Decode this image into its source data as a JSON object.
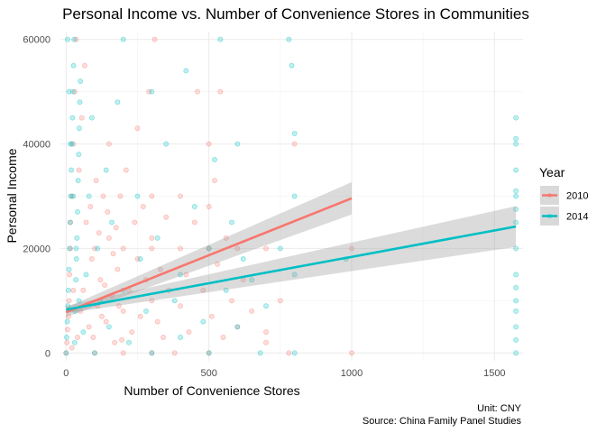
{
  "chart_data": {
    "type": "scatter",
    "title": "Personal Income vs. Number of Convenience Stores in Communities",
    "xlabel": "Number of Convenience Stores",
    "ylabel": "Personal Income",
    "xlim": [
      -20,
      1600
    ],
    "ylim": [
      -1500,
      61500
    ],
    "x_ticks": [
      0,
      500,
      1000,
      1500
    ],
    "y_ticks": [
      0,
      20000,
      40000,
      60000
    ],
    "x_tick_labels": [
      "0",
      "500",
      "1000",
      "1500"
    ],
    "y_tick_labels": [
      "0",
      "20000",
      "40000",
      "60000"
    ],
    "grid": true,
    "legend": {
      "title": "Year",
      "position": "right"
    },
    "caption": [
      "Unit: CNY",
      "Source: China Family Panel Studies"
    ],
    "series": [
      {
        "name": "2010",
        "color": "#F8766D",
        "point_alpha": 0.25,
        "trend": {
          "x": [
            0,
            1000
          ],
          "y": [
            7800,
            29600
          ],
          "ci_lower": [
            6900,
            26500
          ],
          "ci_upper": [
            8700,
            32700
          ]
        },
        "points": [
          [
            0,
            0
          ],
          [
            3,
            2000
          ],
          [
            5,
            4500
          ],
          [
            8,
            7000
          ],
          [
            10,
            10000
          ],
          [
            12,
            15000
          ],
          [
            15,
            20000
          ],
          [
            20,
            30000
          ],
          [
            25,
            40000
          ],
          [
            30,
            50000
          ],
          [
            35,
            60000
          ],
          [
            20,
            1000
          ],
          [
            40,
            3000
          ],
          [
            50,
            8000
          ],
          [
            60,
            12000
          ],
          [
            70,
            25000
          ],
          [
            80,
            5000
          ],
          [
            90,
            18000
          ],
          [
            100,
            0
          ],
          [
            100,
            20000
          ],
          [
            110,
            9000
          ],
          [
            120,
            14000
          ],
          [
            130,
            30000
          ],
          [
            140,
            6000
          ],
          [
            150,
            22000
          ],
          [
            150,
            40000
          ],
          [
            160,
            11000
          ],
          [
            170,
            2000
          ],
          [
            180,
            16000
          ],
          [
            190,
            30000
          ],
          [
            200,
            0
          ],
          [
            200,
            8000
          ],
          [
            200,
            20000
          ],
          [
            210,
            35000
          ],
          [
            220,
            12000
          ],
          [
            230,
            4000
          ],
          [
            240,
            25000
          ],
          [
            250,
            43000
          ],
          [
            250,
            18000
          ],
          [
            260,
            7000
          ],
          [
            270,
            28000
          ],
          [
            280,
            14000
          ],
          [
            290,
            50000
          ],
          [
            300,
            0
          ],
          [
            300,
            10000
          ],
          [
            300,
            20000
          ],
          [
            300,
            30000
          ],
          [
            300,
            22000
          ],
          [
            310,
            60000
          ],
          [
            320,
            6000
          ],
          [
            330,
            16000
          ],
          [
            340,
            3000
          ],
          [
            350,
            26000
          ],
          [
            360,
            12000
          ],
          [
            380,
            0
          ],
          [
            400,
            20000
          ],
          [
            400,
            30000
          ],
          [
            400,
            9000
          ],
          [
            420,
            15000
          ],
          [
            430,
            4000
          ],
          [
            450,
            25000
          ],
          [
            460,
            50000
          ],
          [
            480,
            12000
          ],
          [
            500,
            0
          ],
          [
            500,
            20000
          ],
          [
            500,
            28000
          ],
          [
            500,
            40000
          ],
          [
            510,
            7000
          ],
          [
            520,
            33000
          ],
          [
            530,
            17000
          ],
          [
            540,
            50000
          ],
          [
            550,
            3000
          ],
          [
            560,
            22000
          ],
          [
            580,
            10000
          ],
          [
            600,
            5000
          ],
          [
            600,
            20000
          ],
          [
            620,
            14000
          ],
          [
            650,
            8000
          ],
          [
            700,
            2000
          ],
          [
            700,
            4000
          ],
          [
            700,
            20000
          ],
          [
            750,
            10000
          ],
          [
            780,
            0
          ],
          [
            800,
            40000
          ],
          [
            1000,
            0
          ],
          [
            1000,
            20000
          ],
          [
            15,
            25000
          ],
          [
            25,
            12000
          ],
          [
            45,
            35000
          ],
          [
            55,
            45000
          ],
          [
            65,
            55000
          ],
          [
            85,
            28000
          ],
          [
            95,
            3000
          ],
          [
            105,
            33000
          ],
          [
            115,
            23000
          ],
          [
            125,
            7000
          ],
          [
            135,
            13000
          ],
          [
            145,
            27000
          ],
          [
            165,
            19000
          ],
          [
            175,
            24000
          ],
          [
            185,
            9000
          ],
          [
            195,
            2500
          ]
        ]
      },
      {
        "name": "2014",
        "color": "#00BFC4",
        "point_alpha": 0.25,
        "trend": {
          "x": [
            0,
            1575
          ],
          "y": [
            8300,
            24200
          ],
          "ci_lower": [
            7600,
            20300
          ],
          "ci_upper": [
            9000,
            28100
          ]
        },
        "points": [
          [
            0,
            0
          ],
          [
            2,
            3000
          ],
          [
            4,
            6000
          ],
          [
            6,
            9000
          ],
          [
            8,
            12000
          ],
          [
            10,
            16000
          ],
          [
            12,
            20000
          ],
          [
            14,
            25000
          ],
          [
            16,
            30000
          ],
          [
            18,
            35000
          ],
          [
            20,
            40000
          ],
          [
            22,
            45000
          ],
          [
            24,
            50000
          ],
          [
            26,
            55000
          ],
          [
            28,
            60000
          ],
          [
            30,
            2000
          ],
          [
            32,
            8000
          ],
          [
            34,
            14000
          ],
          [
            36,
            18000
          ],
          [
            38,
            22000
          ],
          [
            40,
            27000
          ],
          [
            42,
            33000
          ],
          [
            44,
            38000
          ],
          [
            46,
            43000
          ],
          [
            48,
            48000
          ],
          [
            50,
            52000
          ],
          [
            5,
            60000
          ],
          [
            10,
            50000
          ],
          [
            15,
            40000
          ],
          [
            25,
            30000
          ],
          [
            35,
            20000
          ],
          [
            45,
            10000
          ],
          [
            60,
            4000
          ],
          [
            70,
            15000
          ],
          [
            80,
            30000
          ],
          [
            90,
            45000
          ],
          [
            100,
            0
          ],
          [
            110,
            20000
          ],
          [
            120,
            10000
          ],
          [
            140,
            35000
          ],
          [
            150,
            5000
          ],
          [
            160,
            25000
          ],
          [
            180,
            48000
          ],
          [
            200,
            60000
          ],
          [
            200,
            12000
          ],
          [
            220,
            2000
          ],
          [
            250,
            30000
          ],
          [
            260,
            18000
          ],
          [
            280,
            8000
          ],
          [
            300,
            50000
          ],
          [
            300,
            0
          ],
          [
            320,
            22000
          ],
          [
            350,
            40000
          ],
          [
            380,
            10000
          ],
          [
            400,
            15000
          ],
          [
            400,
            3000
          ],
          [
            420,
            54000
          ],
          [
            450,
            28000
          ],
          [
            480,
            6000
          ],
          [
            500,
            0
          ],
          [
            500,
            20000
          ],
          [
            520,
            37000
          ],
          [
            540,
            60000
          ],
          [
            560,
            12000
          ],
          [
            580,
            25000
          ],
          [
            600,
            40000
          ],
          [
            600,
            5000
          ],
          [
            620,
            18000
          ],
          [
            650,
            14000
          ],
          [
            680,
            0
          ],
          [
            700,
            9000
          ],
          [
            750,
            20000
          ],
          [
            780,
            60000
          ],
          [
            790,
            55000
          ],
          [
            800,
            42000
          ],
          [
            800,
            30000
          ],
          [
            800,
            15000
          ],
          [
            800,
            0
          ],
          [
            980,
            18000
          ],
          [
            1575,
            0
          ],
          [
            1575,
            10000
          ],
          [
            1575,
            20000
          ],
          [
            1575,
            30000
          ],
          [
            1575,
            40000
          ],
          [
            1575,
            45000
          ],
          [
            1575,
            5000
          ],
          [
            1575,
            15000
          ],
          [
            1575,
            25000
          ],
          [
            1575,
            35000
          ],
          [
            1575,
            2500
          ],
          [
            1575,
            8000
          ],
          [
            1575,
            12500
          ],
          [
            1575,
            27500
          ],
          [
            1575,
            31000
          ],
          [
            1575,
            41000
          ]
        ]
      }
    ]
  }
}
